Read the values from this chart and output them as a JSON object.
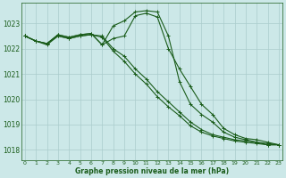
{
  "xlabel": "Graphe pression niveau de la mer (hPa)",
  "background_color": "#cce8e8",
  "grid_color": "#aacccc",
  "line_color": "#1a5c1a",
  "ylim": [
    1017.6,
    1023.8
  ],
  "xlim": [
    -0.3,
    23.3
  ],
  "yticks": [
    1018,
    1019,
    1020,
    1021,
    1022,
    1023
  ],
  "xticks": [
    0,
    1,
    2,
    3,
    4,
    5,
    6,
    7,
    8,
    9,
    10,
    11,
    12,
    13,
    14,
    15,
    16,
    17,
    18,
    19,
    20,
    21,
    22,
    23
  ],
  "series": [
    [
      1022.5,
      1022.3,
      1022.2,
      1022.55,
      1022.45,
      1022.55,
      1022.6,
      1022.15,
      1022.4,
      1022.5,
      1023.3,
      1023.4,
      1023.25,
      1022.0,
      1021.2,
      1020.5,
      1019.8,
      1019.4,
      1018.85,
      1018.6,
      1018.45,
      1018.4,
      1018.3,
      1018.2
    ],
    [
      1022.5,
      1022.3,
      1022.2,
      1022.55,
      1022.45,
      1022.55,
      1022.6,
      1022.15,
      1022.9,
      1023.1,
      1023.45,
      1023.5,
      1023.45,
      1022.5,
      1020.7,
      1019.8,
      1019.4,
      1019.1,
      1018.7,
      1018.5,
      1018.4,
      1018.3,
      1018.2,
      1018.2
    ],
    [
      1022.5,
      1022.3,
      1022.2,
      1022.5,
      1022.4,
      1022.5,
      1022.55,
      1022.5,
      1022.0,
      1021.7,
      1021.2,
      1020.8,
      1020.3,
      1019.9,
      1019.5,
      1019.1,
      1018.8,
      1018.6,
      1018.5,
      1018.4,
      1018.35,
      1018.3,
      1018.25,
      1018.2
    ],
    [
      1022.5,
      1022.3,
      1022.15,
      1022.5,
      1022.4,
      1022.5,
      1022.55,
      1022.45,
      1021.9,
      1021.5,
      1021.0,
      1020.6,
      1020.1,
      1019.7,
      1019.35,
      1018.95,
      1018.7,
      1018.55,
      1018.45,
      1018.35,
      1018.3,
      1018.25,
      1018.2,
      1018.2
    ]
  ]
}
